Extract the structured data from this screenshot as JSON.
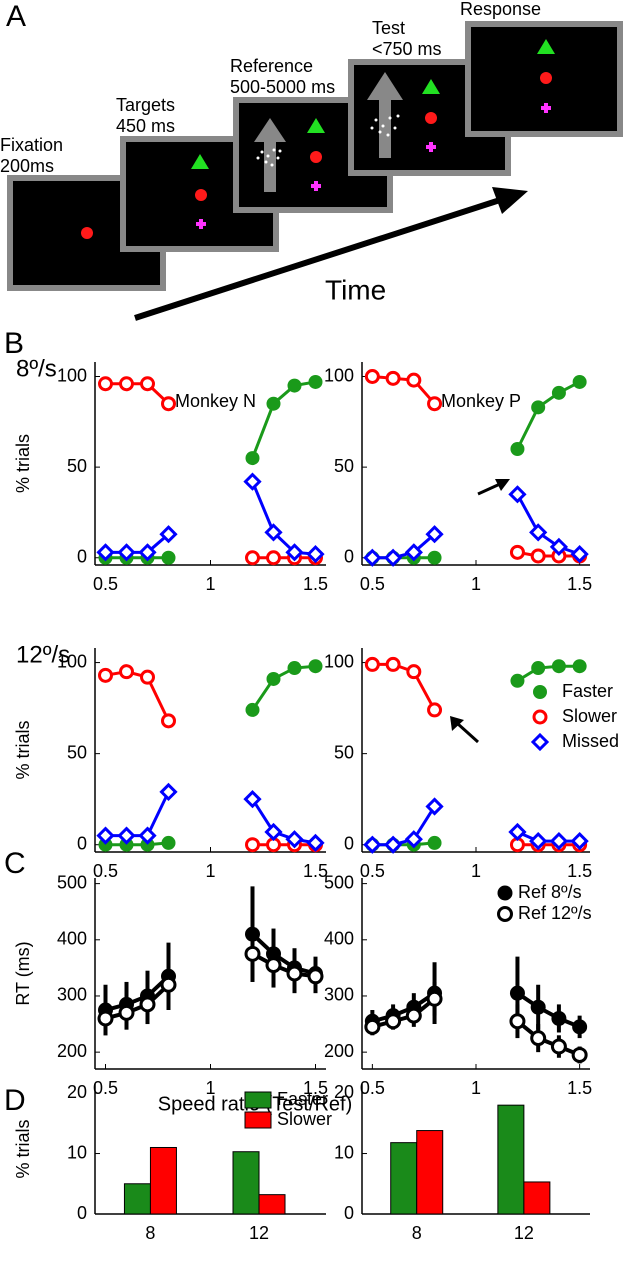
{
  "task_diagram": {
    "panel_label": "A",
    "stages": [
      {
        "label": "Fixation",
        "duration": "200ms"
      },
      {
        "label": "Targets",
        "duration": "450 ms"
      },
      {
        "label": "Reference",
        "duration": "500-5000 ms"
      },
      {
        "label": "Test",
        "duration": "<750 ms"
      },
      {
        "label": "Response"
      }
    ],
    "time_label": "Time"
  },
  "chart_data": [
    {
      "type": "line",
      "panel_label": "B",
      "row_label": "8º/s",
      "title": "Monkey N",
      "ylabel": "% trials",
      "x": [
        0.5,
        0.6,
        0.7,
        0.8,
        1,
        1.2,
        1.3,
        1.4,
        1.5
      ],
      "xlim": [
        0.45,
        1.55
      ],
      "xticks": [
        0.5,
        1,
        1.5
      ],
      "ylim": [
        -4,
        108
      ],
      "yticks": [
        0,
        50,
        100
      ],
      "series": [
        {
          "color": "#1a9a1a",
          "marker": "filled-circle",
          "values": [
            0,
            0,
            0,
            0,
            null,
            55,
            85,
            95,
            97
          ]
        },
        {
          "color": "#ff0000",
          "marker": "open-circle",
          "values": [
            96,
            96,
            96,
            85,
            null,
            0,
            0,
            0,
            0
          ]
        },
        {
          "color": "#0000ff",
          "marker": "open-diamond",
          "values": [
            3,
            3,
            3,
            13,
            null,
            42,
            14,
            3,
            2
          ]
        }
      ]
    },
    {
      "type": "line",
      "title": "Monkey P",
      "x": [
        0.5,
        0.6,
        0.7,
        0.8,
        1,
        1.2,
        1.3,
        1.4,
        1.5
      ],
      "xlim": [
        0.45,
        1.55
      ],
      "xticks": [
        0.5,
        1,
        1.5
      ],
      "ylim": [
        -4,
        108
      ],
      "yticks": [
        0,
        50,
        100
      ],
      "series": [
        {
          "color": "#1a9a1a",
          "marker": "filled-circle",
          "values": [
            0,
            0,
            0,
            0,
            null,
            60,
            83,
            91,
            97
          ]
        },
        {
          "color": "#ff0000",
          "marker": "open-circle",
          "values": [
            100,
            99,
            98,
            85,
            null,
            3,
            1,
            1,
            1
          ]
        },
        {
          "color": "#0000ff",
          "marker": "open-diamond",
          "values": [
            0,
            0,
            3,
            13,
            null,
            35,
            14,
            6,
            2
          ]
        }
      ]
    },
    {
      "type": "line",
      "row_label": "12º/s",
      "ylabel": "% trials",
      "x": [
        0.5,
        0.6,
        0.7,
        0.8,
        1,
        1.2,
        1.3,
        1.4,
        1.5
      ],
      "xlim": [
        0.45,
        1.55
      ],
      "xticks": [
        0.5,
        1,
        1.5
      ],
      "ylim": [
        -4,
        108
      ],
      "yticks": [
        0,
        50,
        100
      ],
      "series": [
        {
          "color": "#1a9a1a",
          "marker": "filled-circle",
          "values": [
            0,
            0,
            0,
            1,
            null,
            74,
            91,
            97,
            98
          ]
        },
        {
          "color": "#ff0000",
          "marker": "open-circle",
          "values": [
            93,
            95,
            92,
            68,
            null,
            0,
            0,
            0,
            0
          ]
        },
        {
          "color": "#0000ff",
          "marker": "open-diamond",
          "values": [
            5,
            5,
            5,
            29,
            null,
            25,
            7,
            3,
            1
          ]
        }
      ]
    },
    {
      "type": "line",
      "legend": true,
      "x": [
        0.5,
        0.6,
        0.7,
        0.8,
        1,
        1.2,
        1.3,
        1.4,
        1.5
      ],
      "xlim": [
        0.45,
        1.55
      ],
      "xticks": [
        0.5,
        1,
        1.5
      ],
      "ylim": [
        -4,
        108
      ],
      "yticks": [
        0,
        50,
        100
      ],
      "series": [
        {
          "name": "Faster",
          "color": "#1a9a1a",
          "marker": "filled-circle",
          "values": [
            0,
            0,
            0,
            1,
            null,
            90,
            97,
            98,
            98
          ]
        },
        {
          "name": "Slower",
          "color": "#ff0000",
          "marker": "open-circle",
          "values": [
            99,
            99,
            95,
            74,
            null,
            0,
            0,
            0,
            0
          ]
        },
        {
          "name": "Missed",
          "color": "#0000ff",
          "marker": "open-diamond",
          "values": [
            0,
            0,
            3,
            21,
            null,
            7,
            2,
            2,
            2
          ]
        }
      ]
    },
    {
      "type": "line",
      "panel_label": "C",
      "ylabel": "RT (ms)",
      "xlabel": "Speed ratio (Test/Ref)",
      "x": [
        0.5,
        0.6,
        0.7,
        0.8,
        1,
        1.2,
        1.3,
        1.4,
        1.5
      ],
      "xlim": [
        0.45,
        1.55
      ],
      "xticks": [
        0.5,
        1,
        1.5
      ],
      "ylim": [
        170,
        510
      ],
      "yticks": [
        200,
        300,
        400,
        500
      ],
      "series": [
        {
          "color": "#000000",
          "marker": "filled-circle",
          "values": [
            275,
            285,
            300,
            335,
            null,
            410,
            375,
            350,
            340
          ],
          "errors": [
            45,
            40,
            45,
            60,
            null,
            85,
            45,
            35,
            30
          ]
        },
        {
          "color": "#000000",
          "marker": "open-circle",
          "values": [
            260,
            270,
            285,
            320,
            null,
            375,
            355,
            340,
            335
          ],
          "errors": [
            30,
            30,
            35,
            45,
            null,
            50,
            40,
            35,
            30
          ]
        }
      ]
    },
    {
      "type": "line",
      "legend": true,
      "x": [
        0.5,
        0.6,
        0.7,
        0.8,
        1,
        1.2,
        1.3,
        1.4,
        1.5
      ],
      "xlim": [
        0.45,
        1.55
      ],
      "xticks": [
        0.5,
        1,
        1.5
      ],
      "ylim": [
        170,
        510
      ],
      "yticks": [
        200,
        300,
        400,
        500
      ],
      "series": [
        {
          "name": "Ref 8º/s",
          "color": "#000000",
          "marker": "filled-circle",
          "values": [
            255,
            265,
            280,
            305,
            null,
            305,
            280,
            260,
            245
          ],
          "errors": [
            20,
            20,
            25,
            55,
            null,
            65,
            40,
            25,
            20
          ]
        },
        {
          "name": "Ref 12º/s",
          "color": "#000000",
          "marker": "open-circle",
          "values": [
            245,
            255,
            265,
            295,
            null,
            255,
            225,
            210,
            195
          ],
          "errors": [
            15,
            15,
            20,
            30,
            null,
            30,
            25,
            20,
            15
          ]
        }
      ]
    },
    {
      "type": "bar",
      "panel_label": "D",
      "ylabel": "% trials",
      "legend": true,
      "categories": [
        "8",
        "12"
      ],
      "ylim": [
        0,
        21.5
      ],
      "yticks": [
        0,
        10,
        20
      ],
      "series": [
        {
          "name": "Faster",
          "color": "#1a8a1a",
          "values": [
            5,
            10.3
          ]
        },
        {
          "name": "Slower",
          "color": "#ff0000",
          "values": [
            11,
            3.2
          ]
        }
      ]
    },
    {
      "type": "bar",
      "categories": [
        "8",
        "12"
      ],
      "ylim": [
        0,
        21.5
      ],
      "yticks": [
        0,
        10,
        20
      ],
      "series": [
        {
          "color": "#1a8a1a",
          "values": [
            11.8,
            18
          ]
        },
        {
          "color": "#ff0000",
          "values": [
            13.8,
            5.3
          ]
        }
      ]
    }
  ]
}
